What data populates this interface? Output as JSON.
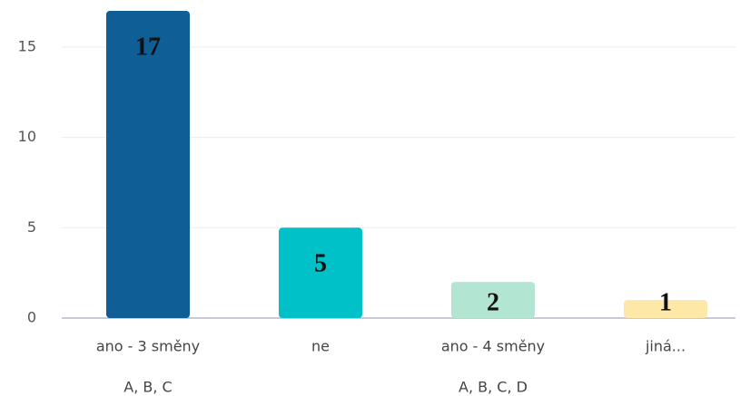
{
  "chart_data": {
    "type": "bar",
    "categories": [
      [
        "ano - 3 směny",
        "A, B, C"
      ],
      [
        "ne"
      ],
      [
        "ano - 4 směny",
        "A, B, C, D"
      ],
      [
        "jiná..."
      ]
    ],
    "values": [
      17,
      5,
      2,
      1
    ],
    "colors": [
      "#0f5e96",
      "#00c1c8",
      "#b3e5d3",
      "#fde8a8"
    ],
    "ylim": [
      0,
      17.5
    ],
    "yticks": [
      0,
      5,
      10,
      15
    ],
    "grid": true
  }
}
